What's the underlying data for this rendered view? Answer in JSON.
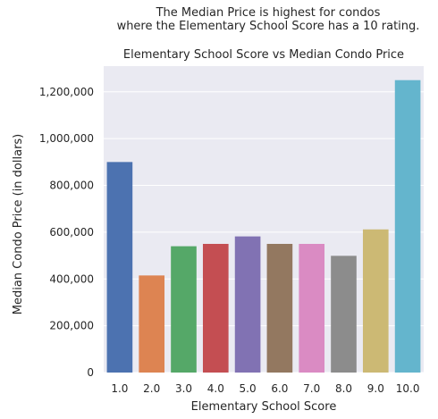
{
  "header": {
    "line1": "The Median Price is highest for condos",
    "line2": "where the Elementary School Score has a 10 rating."
  },
  "chart_data": {
    "type": "bar",
    "title": "Elementary School Score vs Median Condo Price",
    "xlabel": "Elementary School Score",
    "ylabel": "Median Condo Price (in dollars)",
    "categories": [
      "1.0",
      "2.0",
      "3.0",
      "4.0",
      "5.0",
      "6.0",
      "7.0",
      "8.0",
      "9.0",
      "10.0"
    ],
    "values": [
      900000,
      415000,
      540000,
      550000,
      582000,
      550000,
      550000,
      499000,
      612000,
      1250000
    ],
    "ylim": [
      0,
      1310000
    ],
    "yticks": [
      0,
      200000,
      400000,
      600000,
      800000,
      1000000,
      1200000
    ],
    "ytick_labels": [
      "0",
      "200,000",
      "400,000",
      "600,000",
      "800,000",
      "1,000,000",
      "1,200,000"
    ],
    "grid": true,
    "background": "#eaeaf2",
    "colors": [
      "#4c72b0",
      "#dd8452",
      "#55a868",
      "#c44e52",
      "#8172b3",
      "#937860",
      "#da8bc3",
      "#8c8c8c",
      "#ccb974",
      "#64b5cd"
    ]
  }
}
